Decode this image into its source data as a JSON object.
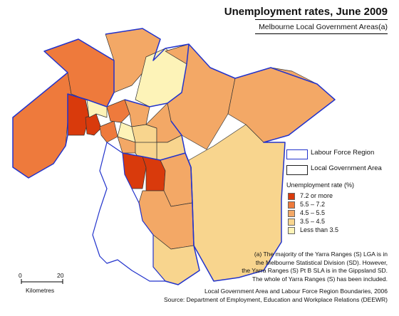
{
  "title": "Unemployment rates, June 2009",
  "subtitle": "Melbourne Local Government Areas(a)",
  "boundary_key": {
    "lfr": "Labour Force Region",
    "lga": "Local Government Area"
  },
  "legend": {
    "title": "Unemployment rate (%)",
    "items": [
      {
        "label": "7.2 or more",
        "color": "#d93a0c"
      },
      {
        "label": "5.5 – 7.2",
        "color": "#ee7a3c"
      },
      {
        "label": "4.5 – 5.5",
        "color": "#f3a866"
      },
      {
        "label": "3.5 – 4.5",
        "color": "#f8d58e"
      },
      {
        "label": "Less than 3.5",
        "color": "#fdf3b8"
      }
    ]
  },
  "scale": {
    "start": "0",
    "end": "20",
    "unit": "Kilometres"
  },
  "footnote": "(a) The majority of the Yarra Ranges (S) LGA is in\nthe Melbourne Statistical Division (SD). However,\nthe Yarra Ranges (S) Pt B SLA is in the Gippsland SD.\nThe whole of Yarra Ranges (S) has been included.",
  "source": "Local Government Area and Labour Force Region Boundaries, 2006\nSource: Department of Employment, Education and Workplace Relations (DEEWR)",
  "colors": {
    "lfr_boundary": "#2233cc",
    "lga_boundary": "#333333",
    "bay_water": "#ffffff"
  }
}
